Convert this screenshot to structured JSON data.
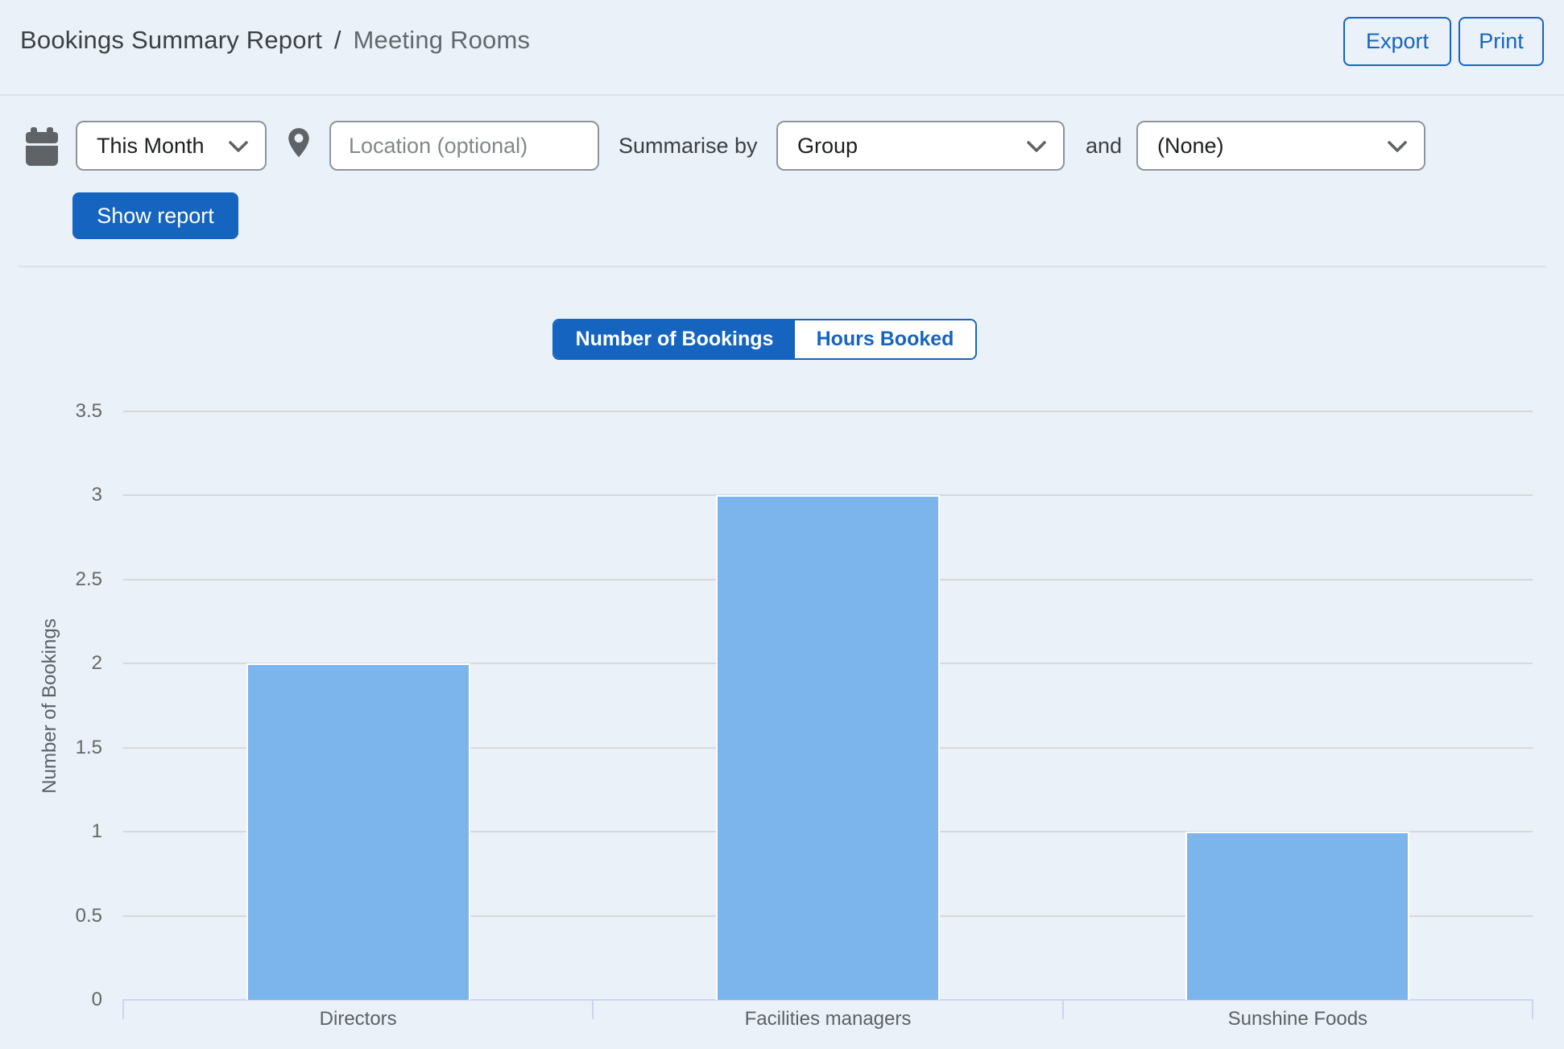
{
  "header": {
    "title_primary": "Bookings Summary Report",
    "title_separator": "/",
    "title_secondary": "Meeting Rooms",
    "export_label": "Export",
    "print_label": "Print"
  },
  "filters": {
    "date_range_value": "This Month",
    "location_placeholder": "Location (optional)",
    "summarise_by_label": "Summarise by",
    "summarise_by_value": "Group",
    "and_label": "and",
    "secondary_value": "(None)",
    "show_report_label": "Show report"
  },
  "metric_toggle": {
    "selected": "Number of Bookings",
    "unselected": "Hours Booked"
  },
  "chart_data": {
    "type": "bar",
    "categories": [
      "Directors",
      "Facilities managers",
      "Sunshine Foods"
    ],
    "values": [
      2,
      3,
      1
    ],
    "title": "",
    "xlabel": "",
    "ylabel": "Number of Bookings",
    "ylim": [
      0,
      3.5
    ],
    "yticks": [
      0,
      0.5,
      1,
      1.5,
      2,
      2.5,
      3,
      3.5
    ],
    "grid": true,
    "legend_position": "none",
    "bar_color": "#7cb5ec"
  },
  "colors": {
    "accent": "#1565c0",
    "bar": "#7cb5ec",
    "gridline": "#d8d8d8",
    "axis": "#ccd6eb",
    "background": "#eaf1f9"
  }
}
